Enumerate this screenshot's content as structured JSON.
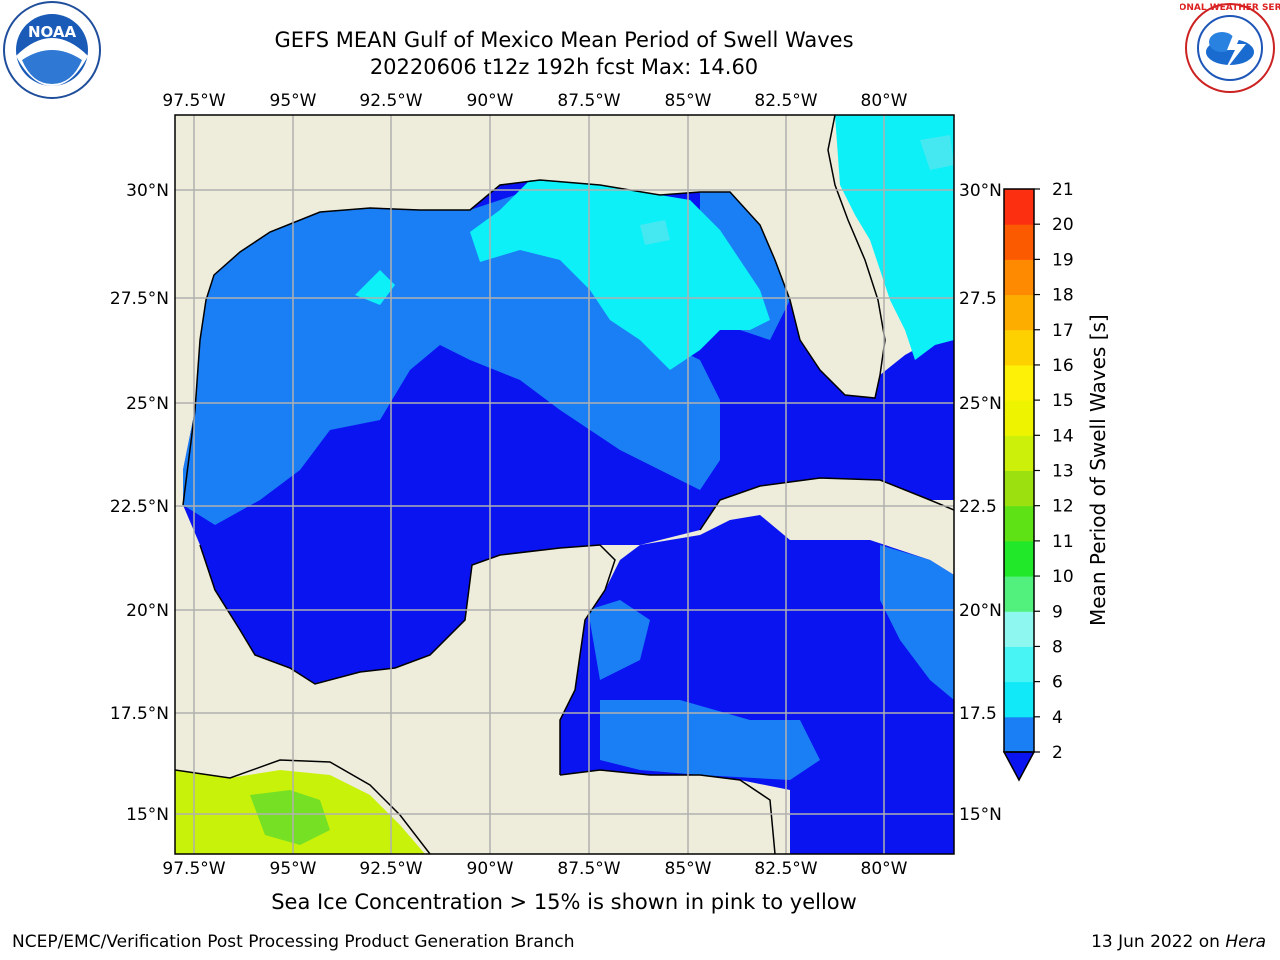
{
  "title_line1": "GEFS MEAN Gulf of Mexico Mean Period of Swell Waves",
  "title_line2": "20220606 t12z 192h fcst   Max: 14.60",
  "logos": {
    "left": "noah-logo",
    "right": "national-weather-service-logo",
    "nws_ring_text": "NATIONAL WEATHER SERVICE"
  },
  "axes": {
    "lon_ticks": [
      "97.5°W",
      "95°W",
      "92.5°W",
      "90°W",
      "87.5°W",
      "85°W",
      "82.5°W",
      "80°W"
    ],
    "lat_ticks_left": [
      "30°N",
      "27.5°N",
      "25°N",
      "22.5°N",
      "20°N",
      "17.5°N",
      "15°N"
    ],
    "lat_ticks_right": [
      "30°N",
      "27.5",
      "25°N",
      "22.5",
      "20°N",
      "17.5",
      "15°N"
    ]
  },
  "colorbar": {
    "label": "Mean Period of Swell Waves [s]",
    "ticks": [
      "2",
      "4",
      "6",
      "8",
      "9",
      "10",
      "11",
      "12",
      "13",
      "14",
      "15",
      "16",
      "17",
      "18",
      "19",
      "20",
      "21"
    ],
    "colors": [
      "#0a14f0",
      "#1a7ef5",
      "#11e8f8",
      "#48f4f4",
      "#8ef8f0",
      "#52f07c",
      "#22e82a",
      "#5ee216",
      "#9ce010",
      "#cdf00a",
      "#eef400",
      "#fdf108",
      "#fdd000",
      "#fdad00",
      "#fd8a00",
      "#fc5a00",
      "#fc3010",
      "#fc0505"
    ]
  },
  "note": "Sea Ice Concentration > 15% is shown in pink to yellow",
  "footer_left": "NCEP/EMC/Verification Post Processing Product Generation Branch",
  "footer_date": "13 Jun 2022 on ",
  "footer_machine": "Hera",
  "colors": {
    "land": "#eeeddb",
    "grid": "#b0b0b0",
    "deep": "#0a14f0",
    "mid": "#1a7ef5",
    "light": "#0df0f8",
    "pale": "#45e8f0",
    "yellowgreen": "#c9f20a",
    "green": "#76e025"
  }
}
